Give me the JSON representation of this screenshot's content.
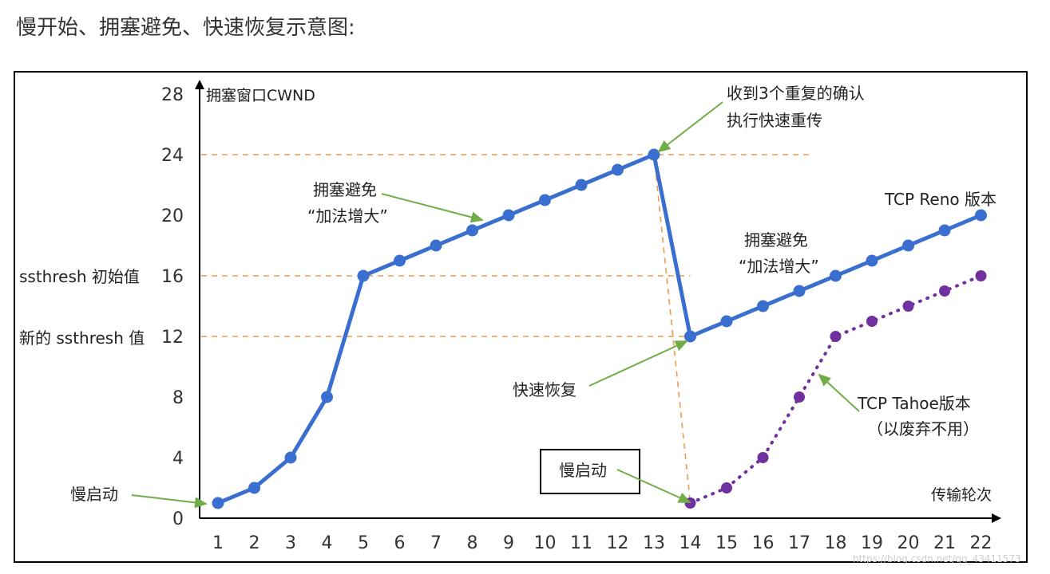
{
  "page": {
    "title": "慢开始、拥塞避免、快速恢复示意图:"
  },
  "chart_data": {
    "type": "line",
    "ylabel": "拥塞窗口CWND",
    "xlabel": "传输轮次",
    "xlim": [
      1,
      22
    ],
    "ylim": [
      0,
      28
    ],
    "x_ticks": [
      1,
      2,
      3,
      4,
      5,
      6,
      7,
      8,
      9,
      10,
      11,
      12,
      13,
      14,
      15,
      16,
      17,
      18,
      19,
      20,
      21,
      22
    ],
    "y_ticks": [
      0,
      4,
      8,
      12,
      16,
      20,
      24,
      28
    ],
    "grid": false,
    "series": [
      {
        "name": "TCP Reno 版本",
        "color": "#3a6fd0",
        "style": "solid",
        "points": [
          [
            1,
            1
          ],
          [
            2,
            2
          ],
          [
            3,
            4
          ],
          [
            4,
            8
          ],
          [
            5,
            16
          ],
          [
            6,
            17
          ],
          [
            7,
            18
          ],
          [
            8,
            19
          ],
          [
            9,
            20
          ],
          [
            10,
            21
          ],
          [
            11,
            22
          ],
          [
            12,
            23
          ],
          [
            13,
            24
          ],
          [
            14,
            12
          ],
          [
            15,
            13
          ],
          [
            16,
            14
          ],
          [
            17,
            15
          ],
          [
            18,
            16
          ],
          [
            19,
            17
          ],
          [
            20,
            18
          ],
          [
            21,
            19
          ],
          [
            22,
            20
          ]
        ]
      },
      {
        "name": "TCP Tahoe版本",
        "color": "#7030a0",
        "style": "dotted",
        "points": [
          [
            14,
            1
          ],
          [
            15,
            2
          ],
          [
            16,
            4
          ],
          [
            17,
            8
          ],
          [
            18,
            12
          ],
          [
            19,
            13
          ],
          [
            20,
            14
          ],
          [
            21,
            15
          ],
          [
            22,
            16
          ]
        ]
      }
    ],
    "threshold_lines": [
      {
        "y": 24,
        "label": ""
      },
      {
        "y": 16,
        "label": "ssthresh 初始值"
      },
      {
        "y": 12,
        "label": "新的 ssthresh 值"
      }
    ],
    "annotations": {
      "slow_start_left": "慢启动",
      "slow_start_box": "慢启动",
      "ca_1_line1": "拥塞避免",
      "ca_1_line2": "“加法增大”",
      "ca_2_line1": "拥塞避免",
      "ca_2_line2": "“加法增大”",
      "dup_ack_line1": "收到3个重复的确认",
      "dup_ack_line2": "执行快速重传",
      "fast_recovery": "快速恢复",
      "reno_label": "TCP Reno 版本",
      "tahoe_line1": "TCP Tahoe版本",
      "tahoe_line2": "（以废弃不用）"
    },
    "colors": {
      "reno": "#3a6fd0",
      "tahoe": "#7030a0",
      "threshold": "#ed9a50",
      "arrow": "#70ad47"
    }
  },
  "watermark": "https://blog.csdn.net/qq_43411573"
}
